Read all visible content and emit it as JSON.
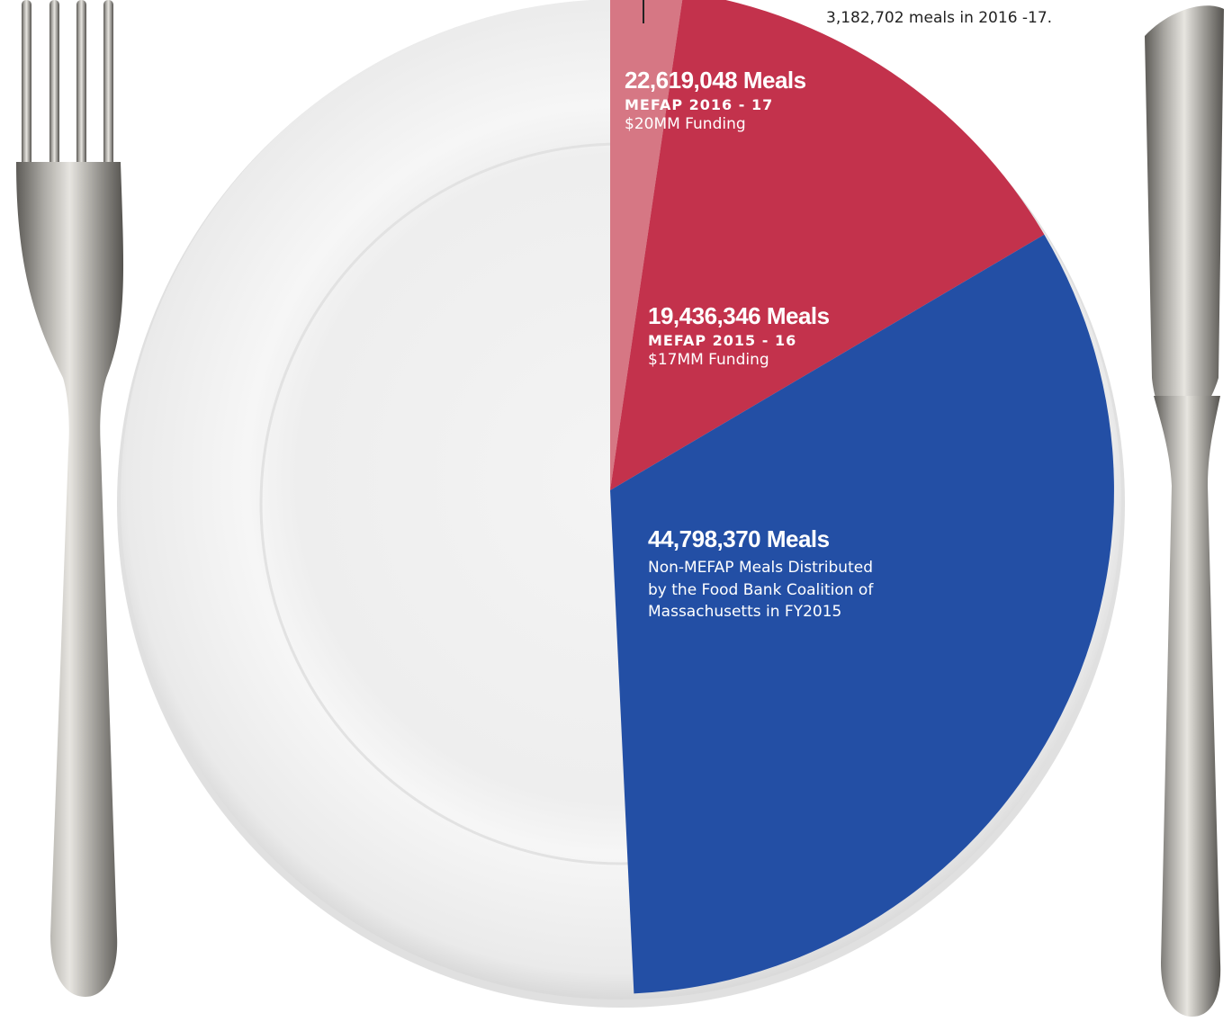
{
  "note_text": "3,182,702 meals in 2016 -17.",
  "colors": {
    "increase": "#d67784",
    "mefap_2015_16": "#c3324c",
    "non_mefap": "#234fa5",
    "plate": "#f4f4f4"
  },
  "icons": {
    "fork": "fork-icon",
    "knife": "knife-icon"
  },
  "chart_data": {
    "type": "pie",
    "title": "",
    "unit": "Meals",
    "slices": [
      {
        "value": 3182702,
        "label": "",
        "color": "#d67784",
        "note": "3,182,702 meals in 2016 -17."
      },
      {
        "value": 19436346,
        "label": "19,436,346 Meals",
        "caption": "MEFAP 2015 - 16",
        "funding": "$17MM Funding",
        "color": "#c3324c"
      },
      {
        "value": 44798370,
        "label": "44,798,370 Meals",
        "description": [
          "Non-MEFAP Meals Distributed",
          "by the Food Bank Coalition of",
          "Massachusetts in FY2015"
        ],
        "color": "#234fa5"
      }
    ],
    "grouped_label": {
      "value": 22619048,
      "label": "22,619,048 Meals",
      "caption": "MEFAP 2016 - 17",
      "funding": "$20MM Funding"
    },
    "start_angle": "12 o'clock",
    "direction": "clockwise",
    "remaining_half": "empty plate"
  }
}
